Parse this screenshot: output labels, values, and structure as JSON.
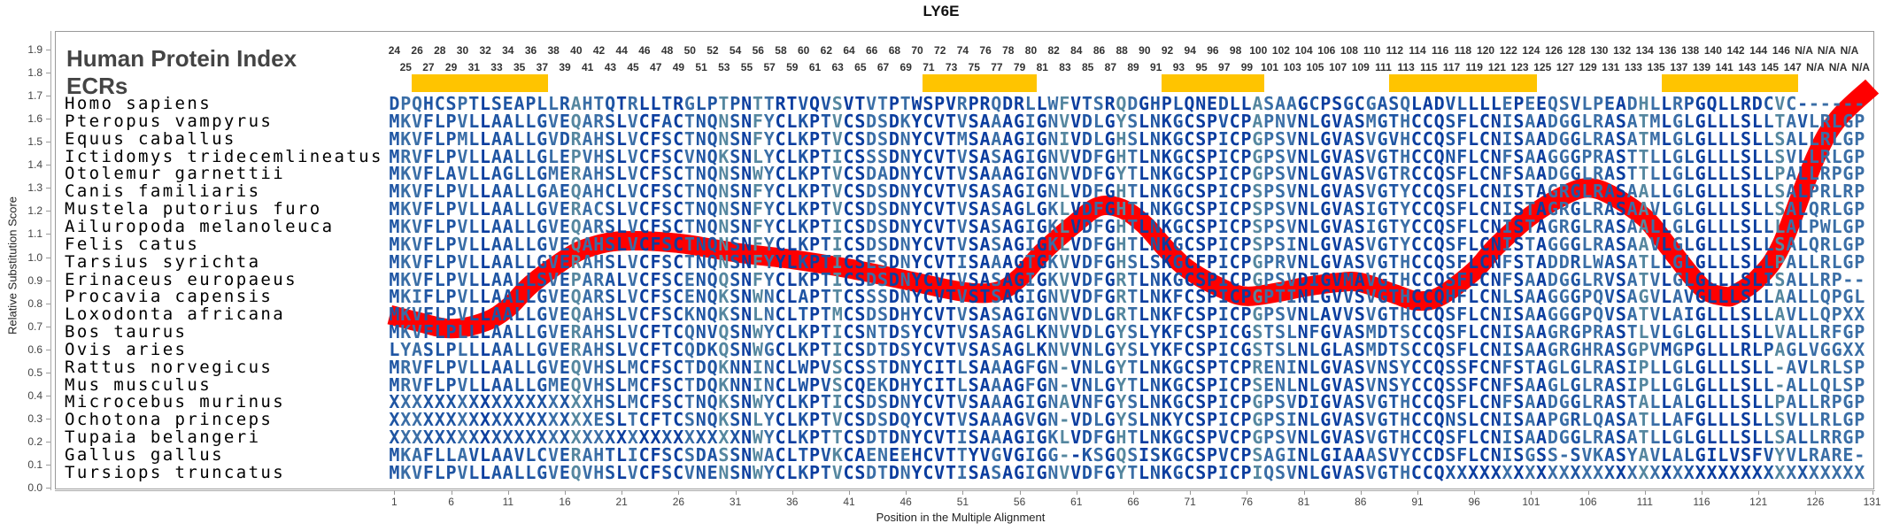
{
  "title": "LY6E",
  "header": {
    "human_protein_index_label": "Human Protein Index",
    "ecr_label": "ECRs",
    "index_start": 24,
    "index_end": 147,
    "na_label": "N/A",
    "na_count": 6,
    "ecr_regions": [
      [
        26,
        37
      ],
      [
        71,
        80
      ],
      [
        92,
        100
      ],
      [
        112,
        124
      ],
      [
        136,
        147
      ]
    ],
    "ecr_color": "#ffc400"
  },
  "axes": {
    "ylabel": "Relative Substitution Score",
    "xlabel": "Position in the Multiple Alignment",
    "yticks": [
      "0.0",
      "0.1",
      "0.2",
      "0.3",
      "0.4",
      "0.5",
      "0.6",
      "0.7",
      "0.8",
      "0.9",
      "1.0",
      "1.1",
      "1.2",
      "1.3",
      "1.4",
      "1.5",
      "1.6",
      "1.7",
      "1.8",
      "1.9"
    ],
    "xticks": [
      "1",
      "6",
      "11",
      "16",
      "21",
      "26",
      "31",
      "36",
      "41",
      "46",
      "51",
      "56",
      "61",
      "66",
      "71",
      "76",
      "81",
      "86",
      "91",
      "96",
      "101",
      "106",
      "111",
      "116",
      "121",
      "126",
      "131"
    ]
  },
  "palette": [
    "#0b3d9f",
    "#1f55a3",
    "#3a6ea6",
    "#55879f",
    "#7fb39c"
  ],
  "alignment": {
    "rows": [
      {
        "species": "Homo sapiens",
        "seq": "DPQHCSPTLSEAPLLRAHTQTRLLTRGLPTPNTTRTVQVSVTVTPTWSPVRPRQDRLLWFVTSRQDGHPLQNEDLLASAAGCPSGCGASQLADVLLLLEPEEQSVLPEADHLLRPGQLLRDCVC------"
      },
      {
        "species": "Pteropus vampyrus",
        "seq": "MKVFLPVLLAALLGVEQARSLVCFACTNQNSNFYCLKPTVCSDSDKYCVTVSAAAGIGNVVDLGYSLNKGCSPVCPAPNVNLGVASMGTHCCQSFLCNISAADGGLRASATMLGLGLLLSLLTAVLRLGP"
      },
      {
        "species": "Equus caballus",
        "seq": "MKVFLPMLLAALLGVDRAHSLVCFSCTNQNSNFYCLKPTVCSDSDNYCVTMSAAAGIGNIVDLGHSLNKGCSPICPGPSVNLGVASVGVHCCQSFLCNISAADGGLRASATMLGLGLLLSLLSALLRLGP"
      },
      {
        "species": "Ictidomys tridecemlineatus",
        "seq": "MRVFLPVLLAALLGLEPVHSLVCFSCVNQKSNLYCLKPTICSSSDNYCVTVSASAGIGNVVDFGHTLNKGCSPICPGPSVNLGVASVGTHCCQNFLCNFSAAGGGPRASTTLLGLGLLLSLLSVLLRLGP"
      },
      {
        "species": "Otolemur garnettii",
        "seq": "MKVFLAVLLAGLLGMERAHSLVCFSCTNQNSNWYCLKPTVCSDADNYCVTVSAAAGIGNVVDFGYTLNKGCSPICPGPSVNLGVASVGTRCCQSFLCNFSAADGGLRASTTLLGLGLLLSLLPALLRPGP"
      },
      {
        "species": "Canis familiaris",
        "seq": "MKVFLPVLLAALLGAEQAHCLVCFSCTNQNSNFYCLKPTVCSDSDNYCVTVSASAGIGNLVDFGHTLNKGCSPICPSPSVNLGVASVGTYCCQSFLCNISTAGRGLRASAALLGLGLLLSLLSALPRLRP"
      },
      {
        "species": "Mustela putorius furo",
        "seq": "MKVFLPVLLAALLGVERACSLVCFSCTNQNSNFYCLKPTVCSDSDNYCVTVSASAGLGKLVDFGHTLNKGCSPICPSPSVNLGVASIGTYCCQSFLCNISTAGRGLRASAAVLGLGLLLSLLSALQRLGP"
      },
      {
        "species": "Ailuropoda melanoleuca",
        "seq": "MKVFLPVLLAALLGVEQARSLVCFSCTNQNSNFYCLKPTICSDSDNYCVTVSASAGIGKLVDFGHTLNKGCSPICPSPSVNLGVASIGTYCCQSFLCNISTAGRGLRASAALLGLGLLLSLLLALPWLGP"
      },
      {
        "species": "Felis catus",
        "seq": "MKVFLPVLLAALLGVEQAHSLVCFSCTNQNSNFYCLKPTICSDSDNYCVTVSASAGIGKLVDFGHTLNKGCSPICPSPSINLGVASVGTYCCQSFLCNISTAGGGLRASAAVLGLGLLLSLLSALQRLGP"
      },
      {
        "species": "Tarsius syrichta",
        "seq": "MKVFLPVLLAALLGVERAHSLVCFSCTNQNSNFYYLKPTICSESDNYCVTISAAAGTGKVVDFGHSLSKGCFPICPGPRVNLGVASVGTHCCQSFLCNFSTADDRLWASATLLGLGLLLSLLPALLRLGP"
      },
      {
        "species": "Erinaceus europaeus",
        "seq": "MKVFLPVLLAALLSVEPARALVCFSCENQQSNFYCLKPTICSDSDNYCVTVSASAGIGKVVDFGRTLNKGCSPICPGPSVDIGVMAVGTHCCQSFLCNFSAADGGLRVSATVLGLGLLLSLISALLRP--"
      },
      {
        "species": "Procavia capensis",
        "seq": "MKIFLPVLLAALLGVEQARSLVCFSCENQKSNWNCLAPTTCSSSDNYCVTVSTSAGIGNVVDFGRTLNKFCSPICPGPTINLGVVSVGTHCCQHFLCNLSAAGGGPQVSAGVLAVGLLLSLLAALLQPGL"
      },
      {
        "species": "Loxodonta africana",
        "seq": "MKVFLPVLLAALLGVEQAHSLVCFSCKNQKSNLNCLTPTMCSDSDHYCVTVSASAGIGNVVDLGRTLNKFCSPICPGPSVNLAVVSVGTHCCQSFLCNISAAGGGPQVSATVLAIGLLLSLLAVLLQPXX"
      },
      {
        "species": "Bos taurus",
        "seq": "MKVFLPLLLAALLGVERAHSLVCFTCQNVQSNWYCLKPTICSNTDSYCVTVSASAGLKNVVDLGYSLYKFCSPICGSTSLNFGVASMDTSCCQSFLCNISAAGRGPRASTLVLGLGLLLSLLVALLRFGP"
      },
      {
        "species": "Ovis aries",
        "seq": "LYASLPLLLAALLGVERAHSLVCFTCQDKQSNWGCLKPTICSDTDSYCVTVSASAGLKNVVNLGYSLYKFCSPICGSTSLNLGLASMDTSCCQSFLCNISAAGRGHRASGPVMGPGLLLRLPAGLVGGXX"
      },
      {
        "species": "Rattus norvegicus",
        "seq": "MRVFLPVLLAALLGVEQVHSLMCFSCTDQKNNINCLWPVSCSSTDNYCITLSAAAGFGN-VNLGYTLNKGCSPTCPRENINLGVASVNSYCCQSSFCNFSTAGLGLRASIPLLGLGLLLSLL-AVLRLSP"
      },
      {
        "species": "Mus musculus",
        "seq": "MRVFLPVLLAALLGMEQVHSLMCFSCTDQKNNINCLWPVSCQEKDHYCITLSAAAGFGN-VNLGYTLNKGCSPICPSENLNLGVASVNSYCCQSSFCNFSAAGLGLRASIPLLGLGLLLSLL-ALLQLSP"
      },
      {
        "species": "Microcebus murinus",
        "seq": "XXXXXXXXXXXXXXXXXXHSLMCFSCTNQKSNWYCLKPTICSDSDNYCVTVSAAAGIGNAVNFGYSLNKGCSPICPGPSVDIGVASVGTHCCQSFLCNFSAADGGLRASTALLALGLLLSLLPALLRPGP"
      },
      {
        "species": "Ochotona princeps",
        "seq": "XXXXXXXXXXXXXXXXXXESLTCFTCSNQKSNLYCLKPTVCSDSDQYCVTVSAAAGVGN-VDLGYSLNKYCSPICPGPSINLGVASVGTHCCQNSLCNISAAPGRLQASATLLAFGLLLSLLSVLLRLGP"
      },
      {
        "species": "Tupaia belangeri",
        "seq": "XXXXXXXXXXXXXXXXXXXXXXXXXXXXXXXNWYCLKPTTCSDTDNYCVTISAAAGIGKLVDFGHTLNKGCSPVCPGPSVNLGVASVGTHCCQSFLCNISAADGGLRASATLLGLGLLLSLLSALLRRGP"
      },
      {
        "species": "Gallus gallus",
        "seq": "MKAFLLAVLAAVLCVERAHTLICFSCSDASSNWACLTPVKCAENEEHCVTTYVGVGIGG--KSGQSISKGCSPVCPSAGINLGIAAASVYCCDSFLCNISGSS-SVKASYAVLALGILVSFVYVLRARE-"
      },
      {
        "species": "Tursiops truncatus",
        "seq": "MKVFLPVLLAALLGVEQVHSLVCFSCVNENSNWYCLKPTVCSDTDNYCVTISASAGIGNVVDFGYTLNKGCSPICPIQSVNLGVASVGTHCCQXXXXXXXXXXXXXXXXXXXXXXXXXXXXXXXXXXXXX"
      }
    ]
  },
  "chart_data": {
    "type": "line",
    "title": "LY6E",
    "xlabel": "Position in the Multiple Alignment",
    "ylabel": "Relative Substitution Score",
    "xlim": [
      -29,
      131
    ],
    "ylim": [
      0,
      1.98
    ],
    "grid": false,
    "series": [
      {
        "name": "Relative Substitution Score",
        "color": "#ff0000",
        "x": [
          0.6,
          3,
          6,
          9,
          11,
          13,
          16,
          18,
          21,
          26,
          31,
          36,
          41,
          46,
          51,
          54,
          56,
          58,
          61,
          63,
          65,
          67,
          69,
          71,
          74,
          76,
          79,
          81,
          84,
          86,
          89,
          91,
          93,
          96,
          98,
          101,
          104,
          106,
          108,
          111,
          113,
          116,
          118,
          119,
          121,
          123,
          126,
          128,
          131
        ],
        "y": [
          0.75,
          0.72,
          0.69,
          0.72,
          0.78,
          0.88,
          0.99,
          1.04,
          1.07,
          1.06,
          1.02,
          0.99,
          0.95,
          0.9,
          0.85,
          0.85,
          0.91,
          1.02,
          1.15,
          1.22,
          1.21,
          1.14,
          1.03,
          0.94,
          0.86,
          0.83,
          0.85,
          0.87,
          0.89,
          0.89,
          0.84,
          0.81,
          0.83,
          0.94,
          1.05,
          1.18,
          1.27,
          1.3,
          1.27,
          1.17,
          1.05,
          0.87,
          0.83,
          0.84,
          0.91,
          1.05,
          1.43,
          1.6,
          1.74
        ]
      }
    ]
  }
}
